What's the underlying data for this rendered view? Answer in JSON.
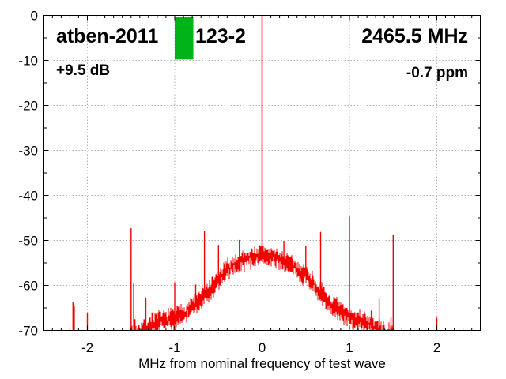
{
  "header": {
    "device_id_left": "atben-2011",
    "device_id_right": "123-2",
    "frequency_label": "2465.5 MHz",
    "gain_label": "+9.5 dB",
    "ppm_label": "-0.7 ppm"
  },
  "chart_data": {
    "type": "line",
    "title": "",
    "xlabel": "MHz from nominal frequency of test wave",
    "ylabel": "",
    "xlim": [
      -2.5,
      2.5
    ],
    "ylim": [
      -70,
      0
    ],
    "x_major_ticks": [
      -2,
      -1,
      0,
      1,
      2
    ],
    "x_tick_labels": [
      "-2",
      "-1",
      "0",
      "1",
      "2"
    ],
    "x_minor_step": 0.1,
    "y_major_ticks": [
      0,
      -10,
      -20,
      -30,
      -40,
      -50,
      -60,
      -70
    ],
    "y_tick_labels": [
      "0",
      "-10",
      "-20",
      "-30",
      "-40",
      "-50",
      "-60",
      "-70"
    ],
    "y_minor_step": 5,
    "grid": true,
    "grid_color": "#b0b0b0",
    "axis_color": "#000000",
    "trace_color": "#f40000",
    "marker_band": {
      "color": "#00b418",
      "x_start_mhz": -1.0,
      "x_end_mhz": -0.787,
      "top_db": -0.3,
      "bottom_db": -9.8
    },
    "carrier": {
      "x_mhz": 0,
      "peak_db": 0,
      "base_db": -53.3
    },
    "noise_band_halfwidth_db": [
      0.6,
      2.1
    ],
    "noise_jitter_db": 1.6,
    "noise_envelope": [
      [
        -1.5,
        -71.5
      ],
      [
        -1.4,
        -70.3
      ],
      [
        -1.3,
        -69.3
      ],
      [
        -1.2,
        -68.2
      ],
      [
        -1.1,
        -67.7
      ],
      [
        -1.0,
        -67.2
      ],
      [
        -0.9,
        -66.2
      ],
      [
        -0.8,
        -64.8
      ],
      [
        -0.7,
        -63.0
      ],
      [
        -0.6,
        -61.2
      ],
      [
        -0.5,
        -58.8
      ],
      [
        -0.4,
        -56.6
      ],
      [
        -0.3,
        -55.2
      ],
      [
        -0.2,
        -54.2
      ],
      [
        -0.1,
        -53.6
      ],
      [
        0.0,
        -53.3
      ],
      [
        0.1,
        -53.6
      ],
      [
        0.2,
        -54.2
      ],
      [
        0.3,
        -55.2
      ],
      [
        0.4,
        -56.6
      ],
      [
        0.5,
        -57.5
      ],
      [
        0.6,
        -60.0
      ],
      [
        0.7,
        -62.5
      ],
      [
        0.8,
        -64.5
      ],
      [
        0.9,
        -65.8
      ],
      [
        1.0,
        -67.3
      ],
      [
        1.1,
        -67.6
      ],
      [
        1.2,
        -68.3
      ],
      [
        1.3,
        -69.5
      ],
      [
        1.4,
        -70.5
      ],
      [
        1.5,
        -71.5
      ]
    ],
    "spurs": [
      [
        -2.165,
        -63.6
      ],
      [
        -2.15,
        -64.6
      ],
      [
        -2.0,
        -66.0
      ],
      [
        -1.5,
        -47.3
      ],
      [
        -1.47,
        -59.6
      ],
      [
        -1.455,
        -67.5
      ],
      [
        -1.33,
        -62.8
      ],
      [
        -1.26,
        -66.0
      ],
      [
        -1.12,
        -66.0
      ],
      [
        -1.0,
        -59.3
      ],
      [
        -0.76,
        -59.8
      ],
      [
        -0.66,
        -47.9
      ],
      [
        -0.5,
        -51.0
      ],
      [
        -0.26,
        -49.9
      ],
      [
        -0.012,
        -51.6
      ],
      [
        0.012,
        -51.3
      ],
      [
        0.25,
        -50.1
      ],
      [
        0.5,
        -51.3
      ],
      [
        0.67,
        -48.1
      ],
      [
        1.0,
        -44.7
      ],
      [
        1.1,
        -66.0
      ],
      [
        1.155,
        -66.4
      ],
      [
        1.25,
        -65.6
      ],
      [
        1.34,
        -63.0
      ],
      [
        1.475,
        -67.0
      ],
      [
        1.5,
        -48.7
      ],
      [
        2.0,
        -67.2
      ]
    ]
  }
}
